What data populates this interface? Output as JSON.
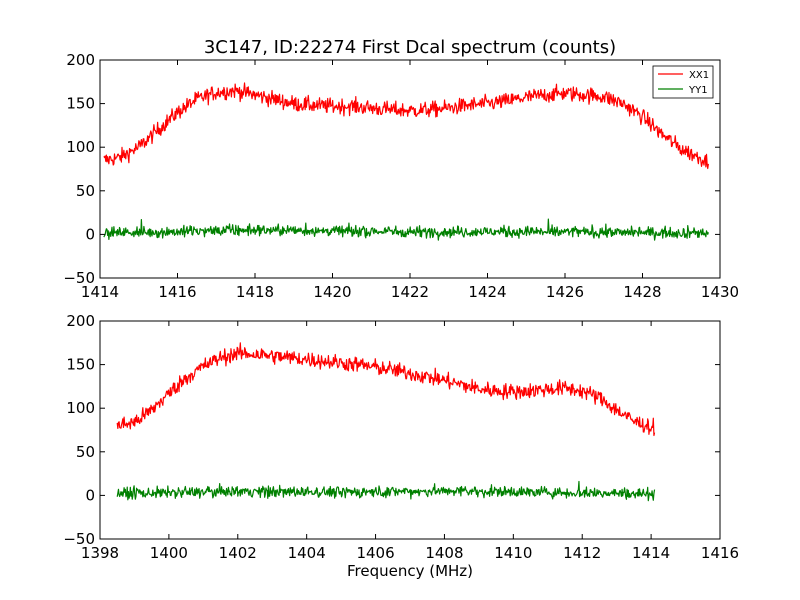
{
  "chart_data": [
    {
      "type": "line",
      "title": "3C147, ID:22274 First Dcal spectrum (counts)",
      "xlabel": "",
      "ylabel": "",
      "xlim": [
        1414,
        1430
      ],
      "ylim": [
        -50,
        200
      ],
      "xticks": [
        "1414",
        "1416",
        "1418",
        "1420",
        "1422",
        "1424",
        "1426",
        "1428",
        "1430"
      ],
      "yticks": [
        "−50",
        "0",
        "50",
        "100",
        "150",
        "200"
      ],
      "legend": {
        "position": "top-right",
        "entries": [
          "XX1",
          "YY1"
        ]
      },
      "series": [
        {
          "name": "XX1",
          "color": "#ff0000",
          "x": [
            1414.1,
            1414.5,
            1415.0,
            1415.5,
            1416.0,
            1416.5,
            1417.0,
            1417.5,
            1418.0,
            1418.5,
            1419.0,
            1419.5,
            1420.0,
            1420.5,
            1421.0,
            1421.5,
            1422.0,
            1422.5,
            1423.0,
            1423.5,
            1424.0,
            1424.5,
            1425.0,
            1425.5,
            1426.0,
            1426.5,
            1427.0,
            1427.5,
            1428.0,
            1428.5,
            1429.0,
            1429.7
          ],
          "y": [
            85,
            88,
            100,
            120,
            140,
            155,
            163,
            165,
            160,
            155,
            150,
            148,
            147,
            147,
            145,
            143,
            142,
            143,
            145,
            148,
            150,
            153,
            157,
            160,
            162,
            160,
            158,
            150,
            135,
            115,
            98,
            83
          ]
        },
        {
          "name": "YY1",
          "color": "#008000",
          "x": [
            1414.1,
            1416.0,
            1418.0,
            1420.0,
            1422.0,
            1424.0,
            1426.0,
            1428.0,
            1429.7
          ],
          "y": [
            2,
            3,
            5,
            4,
            3,
            3,
            3,
            2,
            2
          ]
        }
      ]
    },
    {
      "type": "line",
      "title": "",
      "xlabel": "Frequency (MHz)",
      "ylabel": "",
      "xlim": [
        1398,
        1416
      ],
      "ylim": [
        -50,
        200
      ],
      "xticks": [
        "1398",
        "1400",
        "1402",
        "1404",
        "1406",
        "1408",
        "1410",
        "1412",
        "1414",
        "1416"
      ],
      "yticks": [
        "−50",
        "0",
        "50",
        "100",
        "150",
        "200"
      ],
      "series": [
        {
          "color": "#ff0000",
          "x": [
            1398.5,
            1399.0,
            1399.5,
            1400.0,
            1400.5,
            1401.0,
            1401.5,
            1402.0,
            1402.5,
            1403.0,
            1403.5,
            1404.0,
            1404.5,
            1405.0,
            1405.5,
            1406.0,
            1406.5,
            1407.0,
            1407.5,
            1408.0,
            1408.5,
            1409.0,
            1409.5,
            1410.0,
            1410.5,
            1411.0,
            1411.5,
            1412.0,
            1412.5,
            1413.0,
            1413.5,
            1414.1
          ],
          "y": [
            80,
            84,
            98,
            117,
            135,
            148,
            158,
            163,
            162,
            160,
            158,
            156,
            154,
            152,
            150,
            147,
            144,
            140,
            136,
            132,
            127,
            122,
            120,
            119,
            120,
            122,
            123,
            120,
            112,
            98,
            85,
            77
          ]
        },
        {
          "color": "#008000",
          "x": [
            1398.5,
            1400.0,
            1402.0,
            1404.0,
            1406.0,
            1408.0,
            1410.0,
            1412.0,
            1414.1
          ],
          "y": [
            2,
            3,
            5,
            4,
            4,
            5,
            4,
            3,
            2
          ]
        }
      ]
    }
  ]
}
